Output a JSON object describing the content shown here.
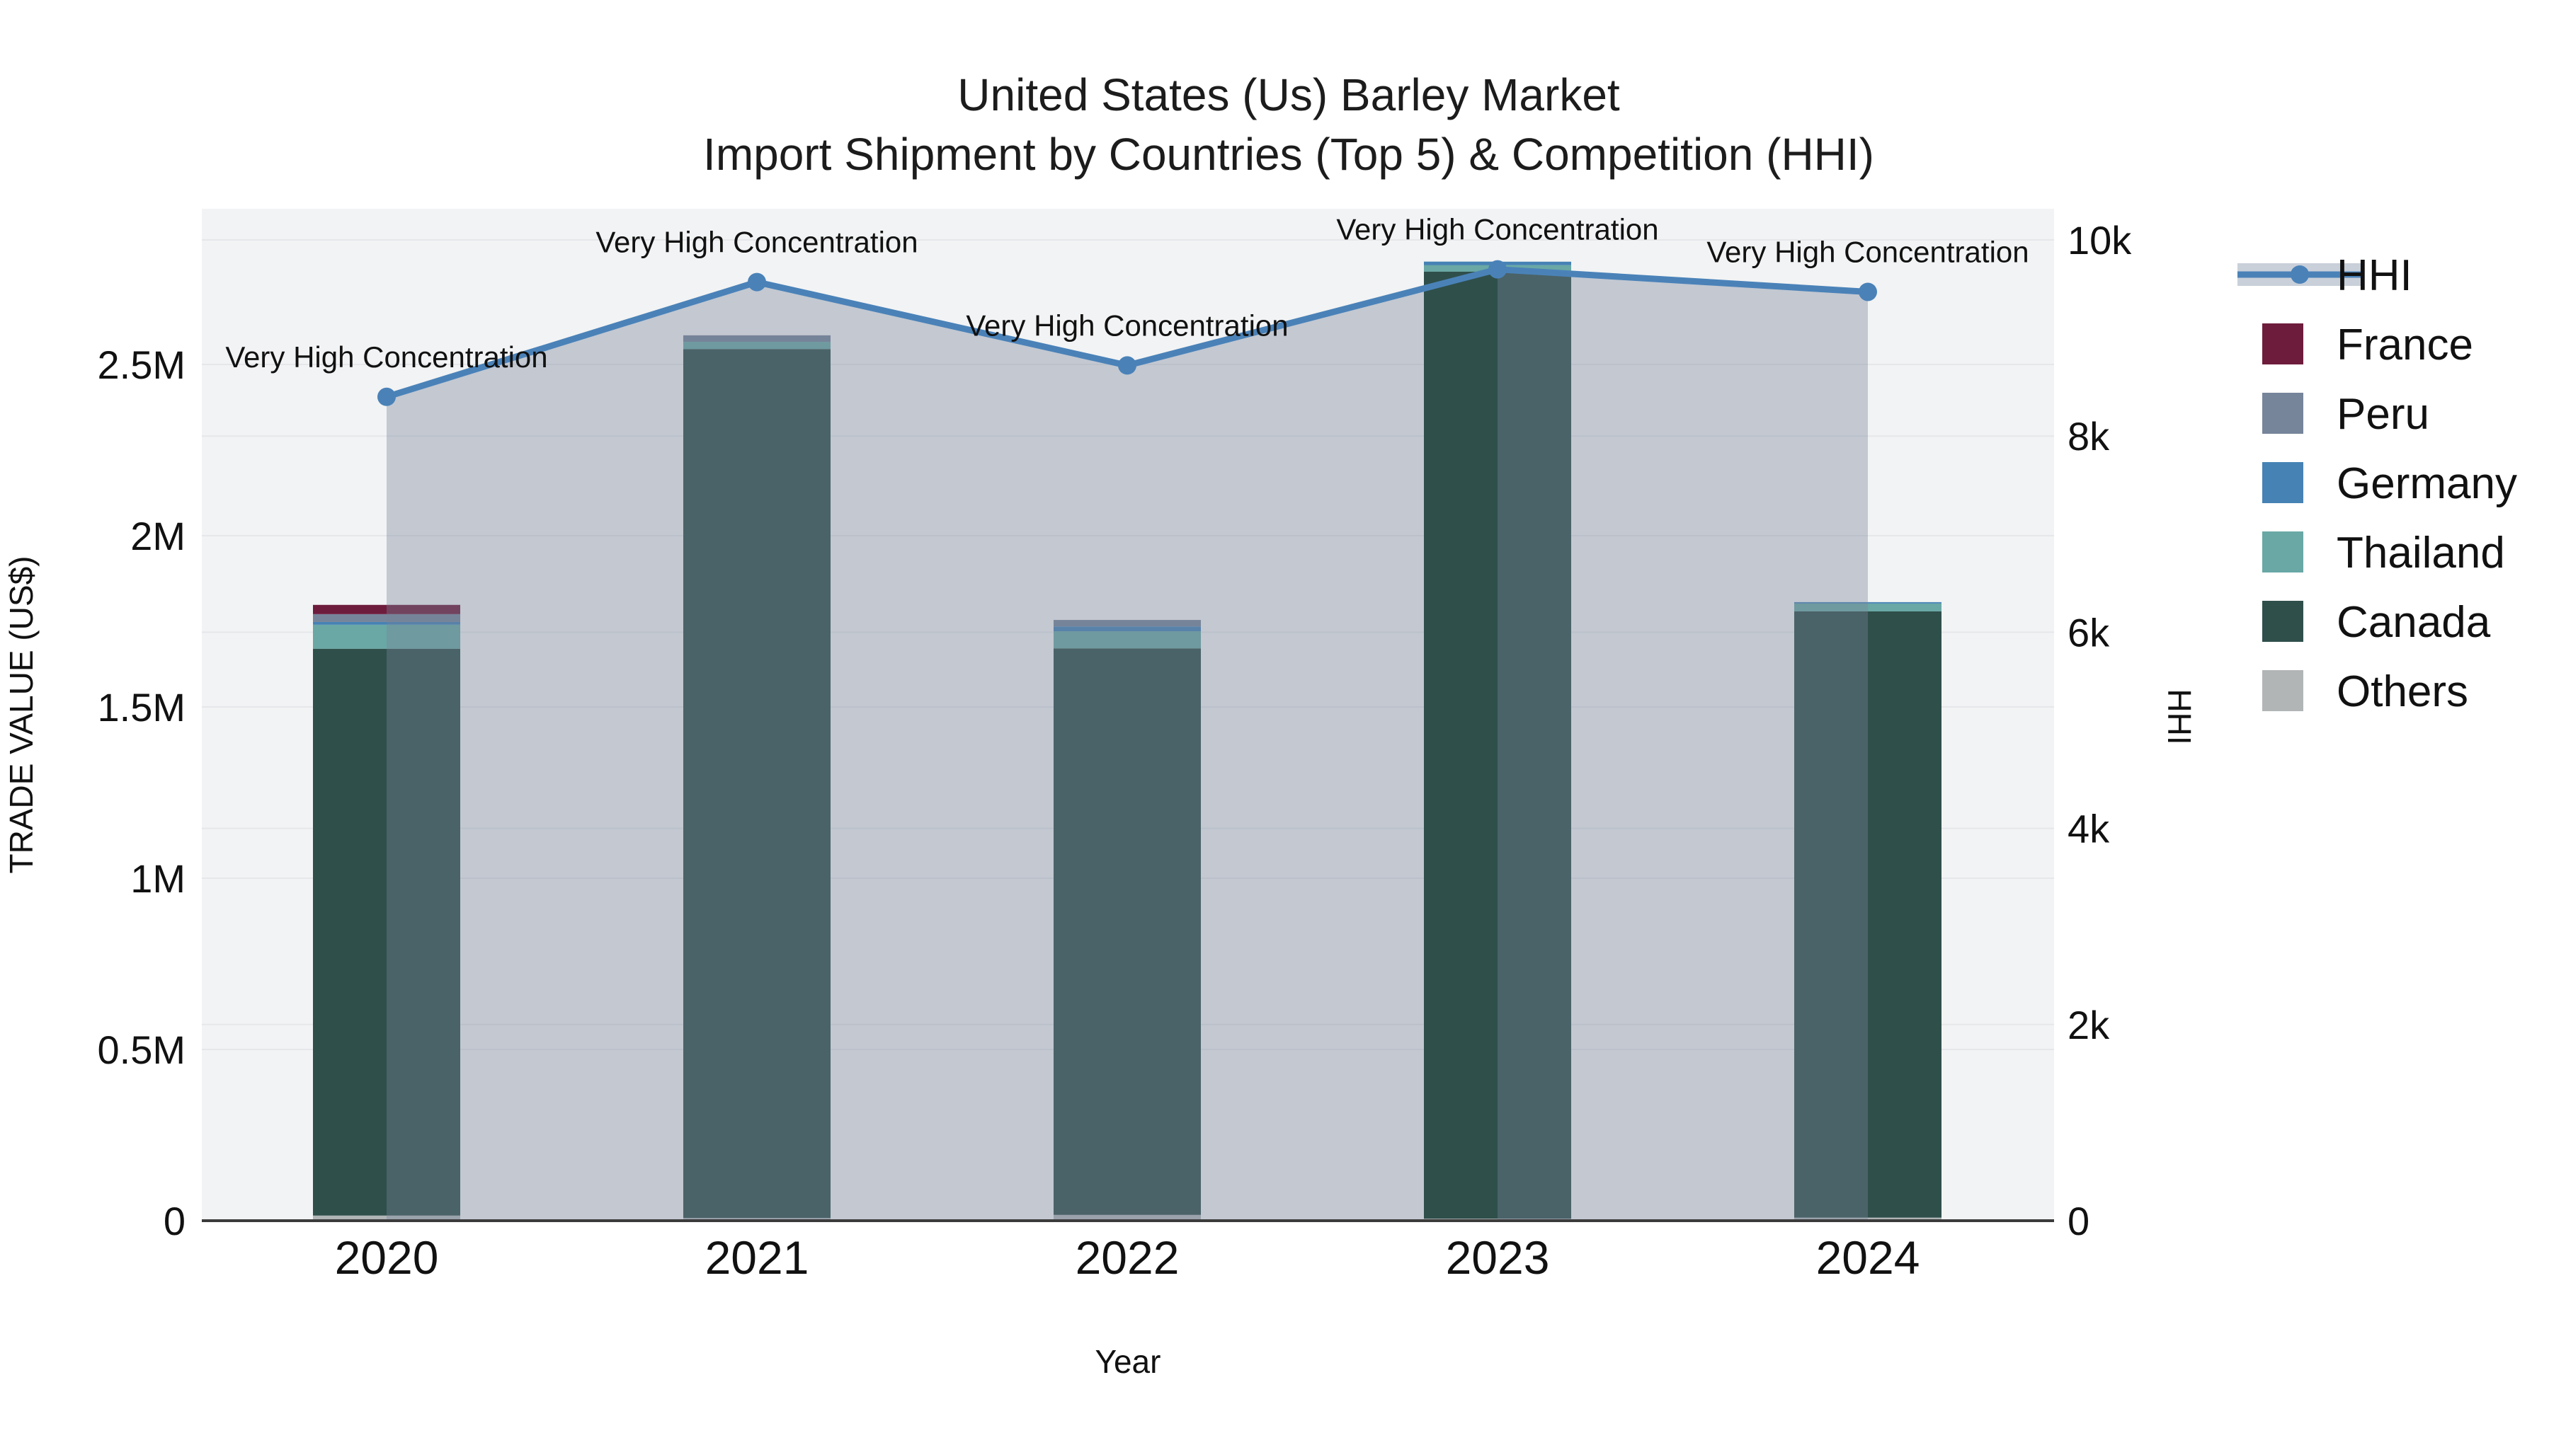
{
  "figure": {
    "title_line1": "United States (Us) Barley Market",
    "title_line2": "Import Shipment by Countries (Top 5) & Competition (HHI)"
  },
  "chart_data": {
    "type": "bar+line combo (stacked bars, secondary-axis line with area fill)",
    "categories": [
      "2020",
      "2021",
      "2022",
      "2023",
      "2024"
    ],
    "bar_series": [
      {
        "name": "Others",
        "color": "#B1B5B6",
        "values": [
          15000,
          8000,
          17000,
          6000,
          9000
        ]
      },
      {
        "name": "Canada",
        "color": "#2F4F4B",
        "values": [
          1655000,
          2537000,
          1654000,
          2765000,
          1770000
        ]
      },
      {
        "name": "Thailand",
        "color": "#69A8A5",
        "values": [
          70000,
          21000,
          50000,
          19000,
          23000
        ]
      },
      {
        "name": "Germany",
        "color": "#4682B4",
        "values": [
          8000,
          0,
          14000,
          10000,
          4000
        ]
      },
      {
        "name": "Peru",
        "color": "#76859A",
        "values": [
          23000,
          19000,
          19000,
          0,
          0
        ]
      },
      {
        "name": "France",
        "color": "#6E1C3C",
        "values": [
          27000,
          0,
          0,
          0,
          0
        ]
      }
    ],
    "bar_totals": [
      1798000,
      2585000,
      1754000,
      2800000,
      1806000
    ],
    "line_series": {
      "name": "HHI",
      "color": "#4A82B8",
      "fill_color": "rgba(118,132,152,0.38)",
      "values": [
        8400,
        9570,
        8720,
        9700,
        9470
      ]
    },
    "annotations": [
      "Very High Concentration",
      "Very High Concentration",
      "Very High Concentration",
      "Very High Concentration",
      "Very High Concentration"
    ],
    "x_axis": {
      "title": "Year"
    },
    "left_axis": {
      "title": "TRADE VALUE (US$)",
      "tick_labels": [
        "0",
        "0.5M",
        "1M",
        "1.5M",
        "2M",
        "2.5M"
      ],
      "tick_values": [
        0,
        500000,
        1000000,
        1500000,
        2000000,
        2500000
      ],
      "range": [
        0,
        2950000
      ]
    },
    "right_axis": {
      "title": "HHI",
      "tick_labels": [
        "0",
        "2k",
        "4k",
        "6k",
        "8k",
        "10k"
      ],
      "tick_values": [
        0,
        2000,
        4000,
        6000,
        8000,
        10000
      ],
      "range": [
        0,
        10320
      ]
    },
    "legend": [
      "HHI",
      "France",
      "Peru",
      "Germany",
      "Thailand",
      "Canada",
      "Others"
    ],
    "style": {
      "plot_bg": "#F2F3F4",
      "grid_color": "#E5E7EA",
      "axis_line_color": "#3B3B3B",
      "legend_band_color": "#C9D0D9"
    }
  }
}
